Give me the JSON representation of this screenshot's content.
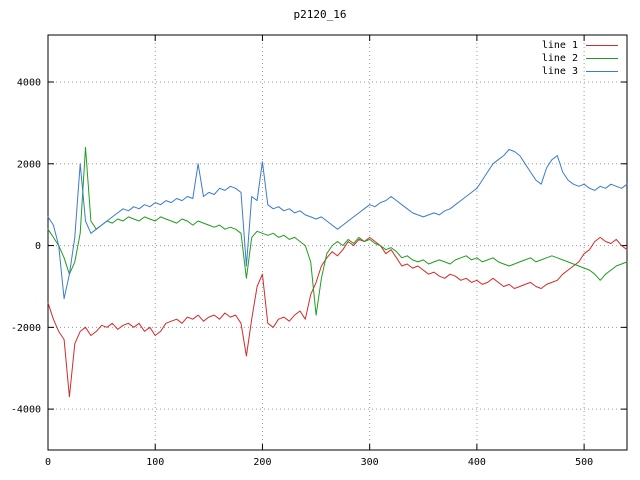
{
  "chart_data": {
    "type": "line",
    "title": "p2120_16",
    "xlabel": "",
    "ylabel": "",
    "xlim": [
      0,
      540
    ],
    "ylim": [
      -5000,
      5150
    ],
    "xticks": [
      0,
      100,
      200,
      300,
      400,
      500
    ],
    "yticks": [
      -4000,
      -2000,
      0,
      2000,
      4000
    ],
    "grid": true,
    "grid_style": "dotted",
    "legend_position": "top-right-inside",
    "x": [
      0,
      5,
      10,
      15,
      20,
      25,
      30,
      35,
      40,
      45,
      50,
      55,
      60,
      65,
      70,
      75,
      80,
      85,
      90,
      95,
      100,
      105,
      110,
      115,
      120,
      125,
      130,
      135,
      140,
      145,
      150,
      155,
      160,
      165,
      170,
      175,
      180,
      185,
      190,
      195,
      200,
      205,
      210,
      215,
      220,
      225,
      230,
      235,
      240,
      245,
      250,
      255,
      260,
      265,
      270,
      275,
      280,
      285,
      290,
      295,
      300,
      305,
      310,
      315,
      320,
      325,
      330,
      335,
      340,
      345,
      350,
      355,
      360,
      365,
      370,
      375,
      380,
      385,
      390,
      395,
      400,
      405,
      410,
      415,
      420,
      425,
      430,
      435,
      440,
      445,
      450,
      455,
      460,
      465,
      470,
      475,
      480,
      485,
      490,
      495,
      500,
      505,
      510,
      515,
      520,
      525,
      530,
      535,
      540
    ],
    "series": [
      {
        "name": "line 1",
        "color": "#d42a2a",
        "y": [
          -1400,
          -1800,
          -2100,
          -2300,
          -3700,
          -2400,
          -2100,
          -2000,
          -2200,
          -2100,
          -1950,
          -2000,
          -1900,
          -2050,
          -1950,
          -1900,
          -2000,
          -1900,
          -2100,
          -2000,
          -2200,
          -2100,
          -1900,
          -1850,
          -1800,
          -1900,
          -1750,
          -1800,
          -1700,
          -1850,
          -1750,
          -1700,
          -1800,
          -1650,
          -1750,
          -1700,
          -1900,
          -2700,
          -1800,
          -1000,
          -700,
          -1900,
          -2000,
          -1800,
          -1750,
          -1850,
          -1700,
          -1600,
          -1800,
          -1200,
          -900,
          -500,
          -300,
          -150,
          -250,
          -100,
          100,
          0,
          150,
          100,
          200,
          100,
          0,
          -200,
          -100,
          -300,
          -500,
          -450,
          -550,
          -500,
          -600,
          -700,
          -650,
          -750,
          -800,
          -700,
          -750,
          -850,
          -800,
          -900,
          -850,
          -950,
          -900,
          -800,
          -900,
          -1000,
          -950,
          -1050,
          -1000,
          -950,
          -900,
          -1000,
          -1050,
          -950,
          -900,
          -850,
          -700,
          -600,
          -500,
          -400,
          -200,
          -100,
          100,
          200,
          100,
          50,
          150,
          0,
          -100
        ]
      },
      {
        "name": "line 2",
        "color": "#1f9e1f",
        "y": [
          400,
          200,
          0,
          -300,
          -700,
          -400,
          300,
          2400,
          600,
          400,
          500,
          600,
          550,
          650,
          600,
          700,
          650,
          600,
          700,
          650,
          600,
          700,
          650,
          600,
          550,
          650,
          600,
          500,
          600,
          550,
          500,
          450,
          500,
          400,
          450,
          400,
          300,
          -800,
          200,
          350,
          300,
          250,
          300,
          200,
          250,
          150,
          200,
          100,
          0,
          -400,
          -1700,
          -800,
          -200,
          0,
          100,
          0,
          150,
          50,
          200,
          100,
          150,
          50,
          0,
          -100,
          -50,
          -150,
          -300,
          -250,
          -350,
          -400,
          -350,
          -450,
          -400,
          -350,
          -400,
          -450,
          -350,
          -300,
          -250,
          -350,
          -300,
          -400,
          -350,
          -300,
          -400,
          -450,
          -500,
          -450,
          -400,
          -350,
          -300,
          -400,
          -350,
          -300,
          -250,
          -300,
          -350,
          -400,
          -450,
          -500,
          -550,
          -600,
          -700,
          -850,
          -700,
          -600,
          -500,
          -450,
          -400
        ]
      },
      {
        "name": "line 3",
        "color": "#3b7bd0",
        "y": [
          700,
          500,
          0,
          -1300,
          -700,
          200,
          2000,
          600,
          300,
          400,
          500,
          600,
          700,
          800,
          900,
          850,
          950,
          900,
          1000,
          950,
          1050,
          1000,
          1100,
          1050,
          1150,
          1100,
          1200,
          1150,
          2000,
          1200,
          1300,
          1250,
          1400,
          1350,
          1450,
          1400,
          1300,
          -500,
          1200,
          1100,
          2050,
          1000,
          900,
          950,
          850,
          900,
          800,
          850,
          750,
          700,
          650,
          700,
          600,
          500,
          400,
          500,
          600,
          700,
          800,
          900,
          1000,
          950,
          1050,
          1100,
          1200,
          1100,
          1000,
          900,
          800,
          750,
          700,
          750,
          800,
          750,
          850,
          900,
          1000,
          1100,
          1200,
          1300,
          1400,
          1600,
          1800,
          2000,
          2100,
          2200,
          2350,
          2300,
          2200,
          2000,
          1800,
          1600,
          1500,
          1900,
          2100,
          2200,
          1800,
          1600,
          1500,
          1450,
          1500,
          1400,
          1350,
          1450,
          1400,
          1500,
          1450,
          1400,
          1500
        ]
      }
    ]
  }
}
